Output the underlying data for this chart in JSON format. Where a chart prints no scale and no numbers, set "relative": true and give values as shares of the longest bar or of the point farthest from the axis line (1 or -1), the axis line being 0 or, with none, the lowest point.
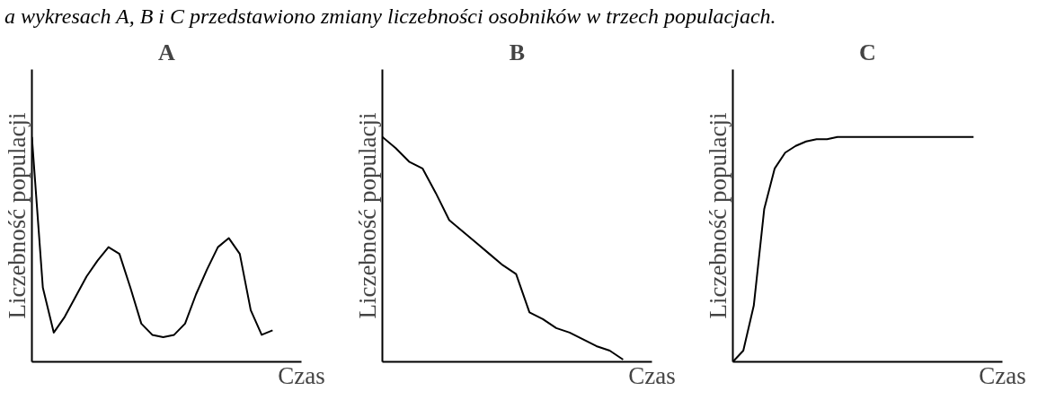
{
  "chart_data": [
    {
      "type": "line",
      "relative": true,
      "title": "A",
      "xlabel": "Czas",
      "ylabel": "Liczebność populacji",
      "annotations": [
        "a wykresach A, B i C przedstawiono zmiany liczebności osobników w trzech populacjach."
      ],
      "categories": [
        null,
        null,
        null,
        null,
        null,
        null,
        null,
        null,
        null,
        null,
        null,
        null,
        null,
        null,
        null,
        null,
        null,
        null,
        null,
        null,
        null,
        null,
        null
      ],
      "series": [
        {
          "color": "#000000",
          "values": [
            1.0,
            0.33,
            0.13,
            0.2,
            0.29,
            0.38,
            0.45,
            0.51,
            0.48,
            0.33,
            0.17,
            0.12,
            0.11,
            0.12,
            0.17,
            0.3,
            0.41,
            0.51,
            0.55,
            0.48,
            0.23,
            0.12,
            0.14
          ]
        }
      ]
    },
    {
      "type": "line",
      "relative": true,
      "title": "B",
      "xlabel": "Czas",
      "ylabel": "Liczebność populacji",
      "categories": [
        null,
        null,
        null,
        null,
        null,
        null,
        null,
        null,
        null,
        null,
        null,
        null,
        null,
        null,
        null,
        null,
        null,
        null,
        null
      ],
      "series": [
        {
          "color": "#000000",
          "values": [
            1.0,
            0.95,
            0.89,
            0.86,
            0.75,
            0.63,
            0.58,
            0.53,
            0.48,
            0.43,
            0.39,
            0.22,
            0.19,
            0.15,
            0.13,
            0.1,
            0.07,
            0.05,
            0.01
          ]
        }
      ]
    },
    {
      "type": "line",
      "relative": true,
      "title": "C",
      "xlabel": "Czas",
      "ylabel": "Liczebność populacji",
      "categories": [
        null,
        null,
        null,
        null,
        null,
        null,
        null,
        null,
        null,
        null,
        null,
        null,
        null,
        null,
        null,
        null,
        null,
        null,
        null,
        null,
        null,
        null,
        null,
        null
      ],
      "series": [
        {
          "color": "#000000",
          "values": [
            0,
            0.05,
            0.25,
            0.68,
            0.86,
            0.93,
            0.96,
            0.98,
            0.99,
            0.99,
            1.0,
            1.0,
            1.0,
            1.0,
            1.0,
            1.0,
            1.0,
            1.0,
            1.0,
            1.0,
            1.0,
            1.0,
            1.0,
            1.0
          ]
        }
      ]
    }
  ]
}
